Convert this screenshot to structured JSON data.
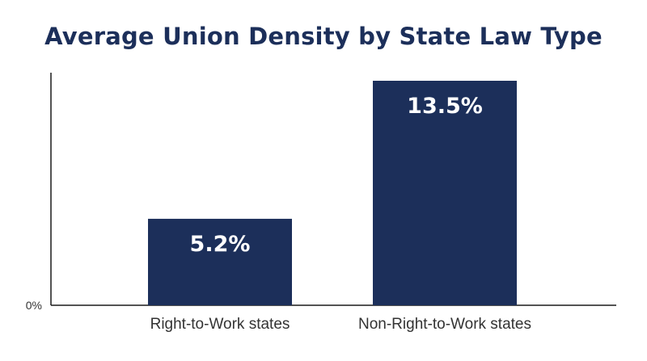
{
  "chart_data": {
    "type": "bar",
    "title": "Average Union Density by State Law Type",
    "categories": [
      "Right-to-Work states",
      "Non-Right-to-Work states"
    ],
    "values": [
      5.2,
      13.5
    ],
    "data_labels": [
      "5.2%",
      "13.5%"
    ],
    "xlabel": "",
    "ylabel": "",
    "ylim": [
      0,
      13.5
    ],
    "y_tick_labels": [
      "0%"
    ],
    "grid": false,
    "legend": "none",
    "bar_color": "#1c2f5a"
  }
}
